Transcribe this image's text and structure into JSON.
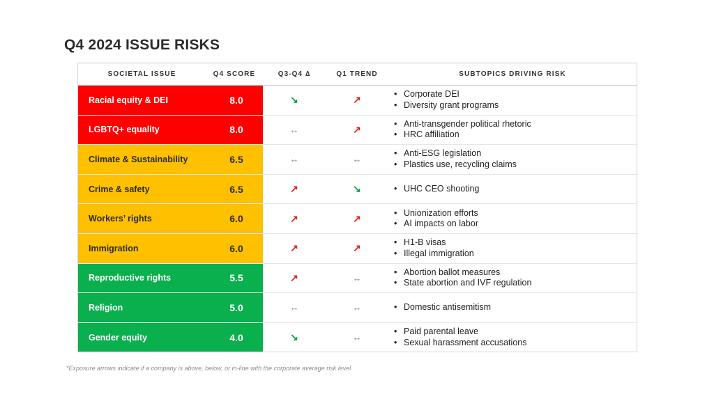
{
  "title": "Q4 2024 ISSUE RISKS",
  "headers": {
    "issue": "SOCIETAL ISSUE",
    "score": "Q4 SCORE",
    "delta": "Q3-Q4 ∆",
    "trend": "Q1 TREND",
    "subtopics": "SUBTOPICS DRIVING RISK"
  },
  "arrow_glyphs": {
    "up": "↗",
    "down": "↘",
    "flat": "↔"
  },
  "colors": {
    "red": "#ff0000",
    "amber": "#ffc000",
    "green": "#0aaf4e",
    "up_arrow": "#e0201b",
    "down_arrow": "#0aa04a"
  },
  "rows": [
    {
      "issue": "Racial equity & DEI",
      "score": "8.0",
      "level": "red",
      "delta": "down",
      "trend": "up",
      "subtopics": [
        "Corporate DEI",
        "Diversity grant programs"
      ]
    },
    {
      "issue": "LGBTQ+ equality",
      "score": "8.0",
      "level": "red",
      "delta": "flat",
      "trend": "up",
      "subtopics": [
        "Anti-transgender political rhetoric",
        "HRC affiliation"
      ]
    },
    {
      "issue": "Climate & Sustainability",
      "score": "6.5",
      "level": "amber",
      "delta": "flat",
      "trend": "flat",
      "subtopics": [
        "Anti-ESG legislation",
        "Plastics use, recycling claims"
      ]
    },
    {
      "issue": "Crime & safety",
      "score": "6.5",
      "level": "amber",
      "delta": "up",
      "trend": "down",
      "subtopics": [
        "UHC CEO shooting"
      ]
    },
    {
      "issue": "Workers’ rights",
      "score": "6.0",
      "level": "amber",
      "delta": "up",
      "trend": "up",
      "subtopics": [
        "Unionization efforts",
        "AI impacts on labor"
      ]
    },
    {
      "issue": "Immigration",
      "score": "6.0",
      "level": "amber",
      "delta": "up",
      "trend": "up",
      "subtopics": [
        "H1-B visas",
        "Illegal immigration"
      ]
    },
    {
      "issue": "Reproductive rights",
      "score": "5.5",
      "level": "green",
      "delta": "up",
      "trend": "flat",
      "subtopics": [
        "Abortion ballot measures",
        "State abortion and IVF regulation"
      ]
    },
    {
      "issue": "Religion",
      "score": "5.0",
      "level": "green",
      "delta": "flat",
      "trend": "flat",
      "subtopics": [
        "Domestic antisemitism"
      ]
    },
    {
      "issue": "Gender equity",
      "score": "4.0",
      "level": "green",
      "delta": "down",
      "trend": "flat",
      "subtopics": [
        "Paid parental leave",
        "Sexual harassment accusations"
      ]
    }
  ],
  "footnote": "*Exposure arrows indicate if  a company is above, below, or in-line with the corporate average risk level"
}
